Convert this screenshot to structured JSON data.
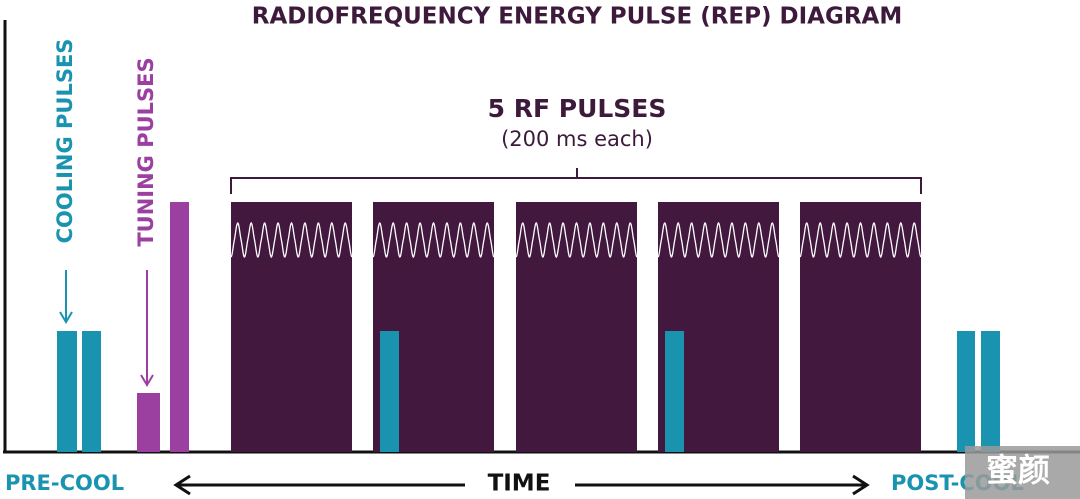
{
  "header": {
    "title": "RADIOFREQUENCY ENERGY PULSE (REP) DIAGRAM"
  },
  "rf_group": {
    "label": "5 RF PULSES",
    "sublabel": "(200 ms each)"
  },
  "labels": {
    "cooling": "COOLING PULSES",
    "tuning": "TUNING PULSES"
  },
  "axis": {
    "left": "PRE-COOL",
    "center": "TIME",
    "right": "POST-COOL"
  },
  "watermark": "蜜颜"
}
